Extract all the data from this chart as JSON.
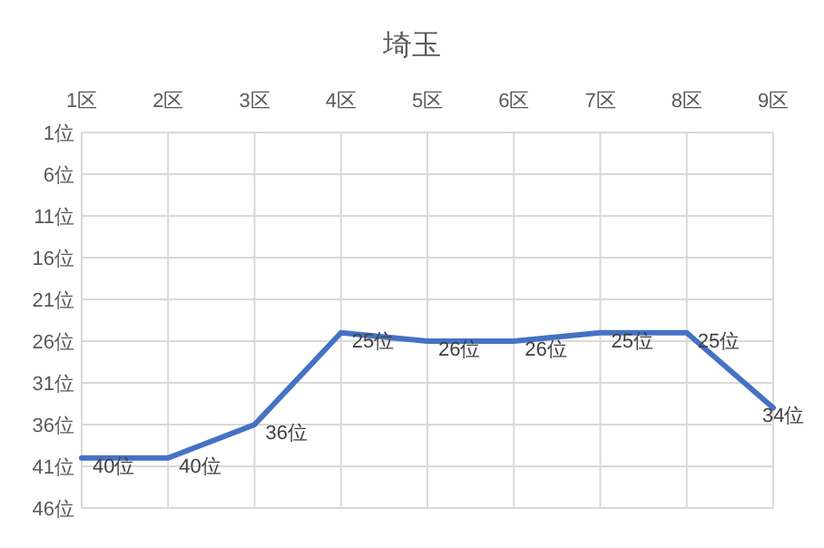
{
  "chart_data": {
    "type": "line",
    "title": "埼玉",
    "categories": [
      "1区",
      "2区",
      "3区",
      "4区",
      "5区",
      "6区",
      "7区",
      "8区",
      "9区"
    ],
    "series": [
      {
        "color": "#4472c4",
        "values": [
          40,
          40,
          36,
          25,
          26,
          26,
          25,
          25,
          34
        ]
      }
    ],
    "value_labels": [
      "40位",
      "40位",
      "36位",
      "25位",
      "26位",
      "26位",
      "25位",
      "25位",
      "34位"
    ],
    "ylim": [
      46,
      1
    ],
    "yticks": [
      {
        "value": 1,
        "label": "1位"
      },
      {
        "value": 6,
        "label": "6位"
      },
      {
        "value": 11,
        "label": "11位"
      },
      {
        "value": 16,
        "label": "16位"
      },
      {
        "value": 21,
        "label": "21位"
      },
      {
        "value": 26,
        "label": "26位"
      },
      {
        "value": 31,
        "label": "31位"
      },
      {
        "value": 36,
        "label": "36位"
      },
      {
        "value": 41,
        "label": "41位"
      },
      {
        "value": 46,
        "label": "46位"
      }
    ],
    "grid": true,
    "marker": "none",
    "line_style": "solid"
  }
}
